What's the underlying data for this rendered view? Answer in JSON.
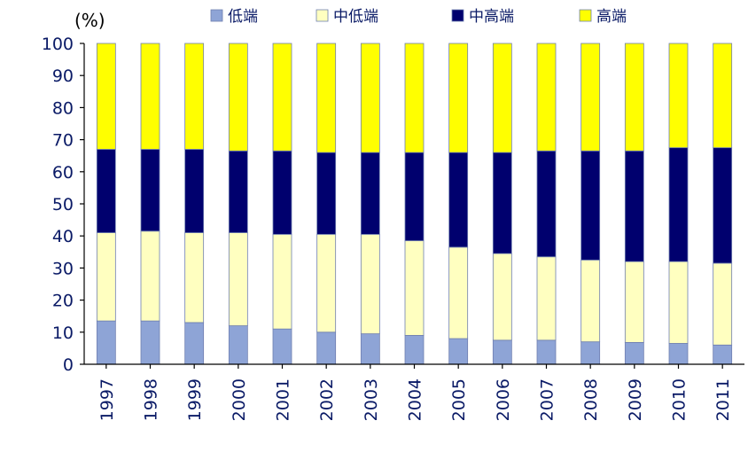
{
  "chart_data": {
    "type": "bar",
    "stacked": true,
    "unit_label": "(%)",
    "ylim": [
      0,
      100
    ],
    "yticks": [
      0,
      10,
      20,
      30,
      40,
      50,
      60,
      70,
      80,
      90,
      100
    ],
    "grid": false,
    "legend_position": "top",
    "categories": [
      "1997",
      "1998",
      "1999",
      "2000",
      "2001",
      "2002",
      "2003",
      "2004",
      "2005",
      "2006",
      "2007",
      "2008",
      "2009",
      "2010",
      "2011"
    ],
    "series": [
      {
        "name": "低端",
        "color": "#8EA4D6",
        "values": [
          13.5,
          13.5,
          13,
          12,
          11,
          10,
          9.5,
          9,
          8,
          7.5,
          7.5,
          7,
          6.8,
          6.5,
          6
        ]
      },
      {
        "name": "中低端",
        "color": "#FFFFC0",
        "values": [
          27.5,
          28,
          28,
          29,
          29.5,
          30.5,
          31,
          29.5,
          28.5,
          27,
          26,
          25.5,
          25.2,
          25.5,
          25.5
        ]
      },
      {
        "name": "中高端",
        "color": "#00006E",
        "values": [
          26,
          25.5,
          26,
          25.5,
          26,
          25.5,
          25.5,
          27.5,
          29.5,
          31.5,
          33,
          34,
          34.5,
          35.5,
          36
        ]
      },
      {
        "name": "高端",
        "color": "#FFFF00",
        "values": [
          33,
          33,
          33,
          33.5,
          33.5,
          34,
          34,
          34,
          34,
          34,
          33.5,
          33.5,
          33.5,
          32.5,
          32.5
        ]
      }
    ]
  }
}
